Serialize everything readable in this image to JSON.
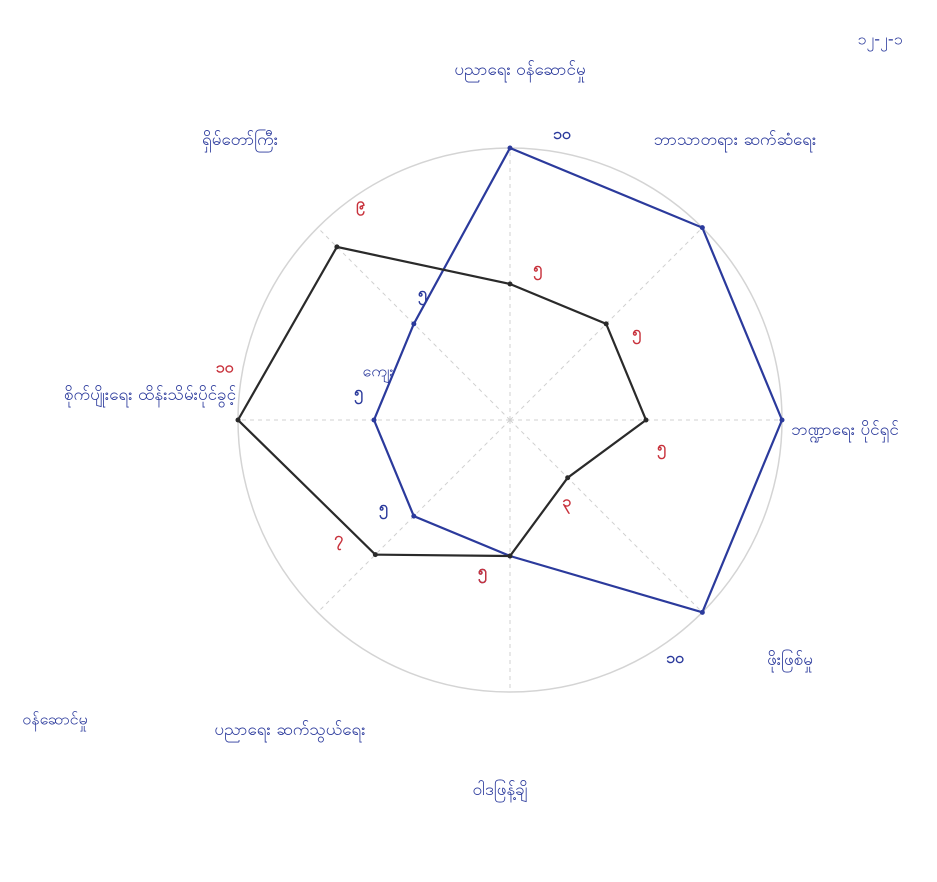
{
  "chart_data": {
    "type": "radar",
    "categories": [
      "ပညာရေး ဝန်ဆောင်မှု",
      "ဘာသာတရား ဆက်ဆံရေး",
      "ဘဏ္ဍာရေး ပိုင်ရှင်",
      "ဖိုးဖြစ်မှု",
      "ဝါဒဖြန့်ချိ",
      "ပညာရေး ဆက်သွယ်ရေး",
      "စိုက်ပျိုးရေး ထိန်းသိမ်းပိုင်ခွင့်",
      "ရှိမ်တော်ကြီး"
    ],
    "rlim": [
      0,
      10
    ],
    "series": [
      {
        "color": "#2b3a9c",
        "values": [
          10,
          10,
          10,
          10,
          5,
          5,
          5,
          5
        ],
        "value_labels": [
          "၁၀",
          null,
          null,
          "၁၀",
          "၅",
          "၅",
          "၅",
          "၅"
        ],
        "label_color": "#2b3a9c"
      },
      {
        "color": "#2a2a2a",
        "values": [
          5,
          5,
          5,
          3,
          5,
          7,
          10,
          9
        ],
        "value_labels": [
          "၅",
          "၅",
          "၅",
          "၃",
          "၅",
          "၇",
          "၁၀",
          "၉"
        ],
        "label_color": "#c8323c"
      }
    ],
    "annotations": [
      "၁၂-၂-၁",
      "ဝန်ဆောင်မှု",
      "ကျေး"
    ]
  }
}
